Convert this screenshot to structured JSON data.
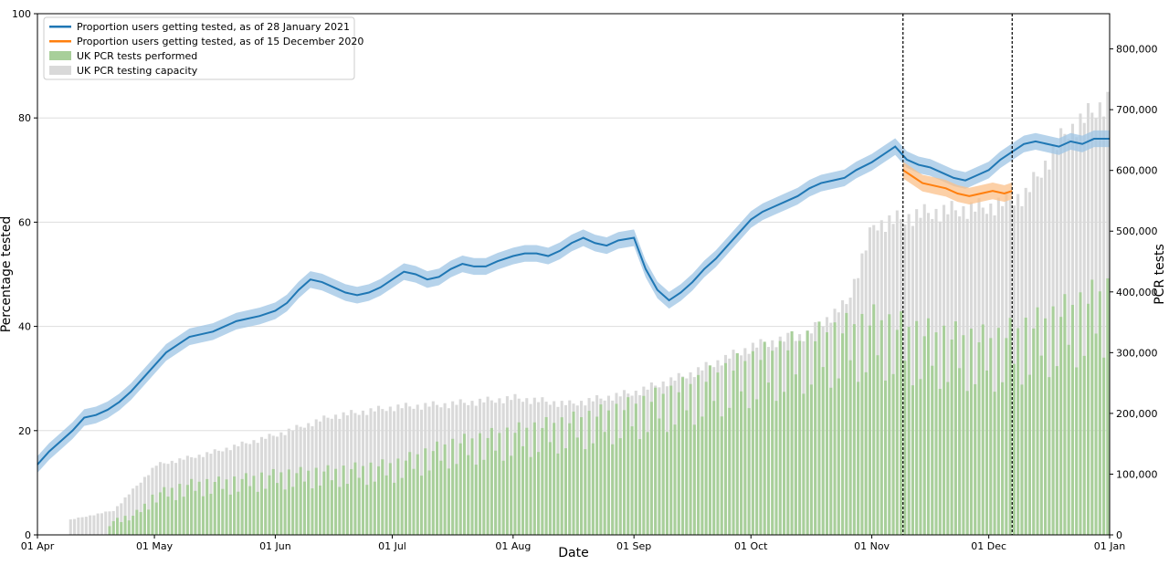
{
  "chart_data": {
    "type": "bar+line",
    "xlabel": "Date",
    "ylabel_left": "Percentage tested",
    "ylabel_right": "PCR tests",
    "x_range": [
      "2020-04-01",
      "2021-01-01"
    ],
    "ylim_left": [
      0,
      100
    ],
    "ylim_right": [
      0,
      858000
    ],
    "x_ticks": [
      {
        "date": "2020-04-01",
        "label": "01 Apr"
      },
      {
        "date": "2020-05-01",
        "label": "01 May"
      },
      {
        "date": "2020-06-01",
        "label": "01 Jun"
      },
      {
        "date": "2020-07-01",
        "label": "01 Jul"
      },
      {
        "date": "2020-08-01",
        "label": "01 Aug"
      },
      {
        "date": "2020-09-01",
        "label": "01 Sep"
      },
      {
        "date": "2020-10-01",
        "label": "01 Oct"
      },
      {
        "date": "2020-11-01",
        "label": "01 Nov"
      },
      {
        "date": "2020-12-01",
        "label": "01 Dec"
      },
      {
        "date": "2021-01-01",
        "label": "01 Jan"
      }
    ],
    "y_ticks_left": [
      {
        "value": 0,
        "label": "0"
      },
      {
        "value": 20,
        "label": "20"
      },
      {
        "value": 40,
        "label": "40"
      },
      {
        "value": 60,
        "label": "60"
      },
      {
        "value": 80,
        "label": "80"
      },
      {
        "value": 100,
        "label": "100"
      }
    ],
    "y_ticks_right": [
      {
        "value": 0,
        "label": "0"
      },
      {
        "value": 100000,
        "label": "100,000"
      },
      {
        "value": 200000,
        "label": "200,000"
      },
      {
        "value": 300000,
        "label": "300,000"
      },
      {
        "value": 400000,
        "label": "400,000"
      },
      {
        "value": 500000,
        "label": "500,000"
      },
      {
        "value": 600000,
        "label": "600,000"
      },
      {
        "value": 700000,
        "label": "700,000"
      },
      {
        "value": 800000,
        "label": "800,000"
      }
    ],
    "grid": "horizontal",
    "legend_position": "top-left",
    "vlines": [
      "2020-11-09",
      "2020-12-07"
    ],
    "series": [
      {
        "name": "Proportion users getting tested, as of 28 January 2021",
        "kind": "line",
        "axis": "left",
        "color": "#1f77b4",
        "band_color": "#9ec4e4",
        "points": [
          [
            "2020-04-01",
            13.5
          ],
          [
            "2020-04-04",
            16
          ],
          [
            "2020-04-07",
            18
          ],
          [
            "2020-04-10",
            20
          ],
          [
            "2020-04-13",
            22.5
          ],
          [
            "2020-04-16",
            23
          ],
          [
            "2020-04-19",
            24
          ],
          [
            "2020-04-22",
            25.5
          ],
          [
            "2020-04-25",
            27.5
          ],
          [
            "2020-04-28",
            30
          ],
          [
            "2020-05-01",
            32.5
          ],
          [
            "2020-05-04",
            35
          ],
          [
            "2020-05-07",
            36.5
          ],
          [
            "2020-05-10",
            38
          ],
          [
            "2020-05-13",
            38.5
          ],
          [
            "2020-05-16",
            39
          ],
          [
            "2020-05-19",
            40
          ],
          [
            "2020-05-22",
            41
          ],
          [
            "2020-05-25",
            41.5
          ],
          [
            "2020-05-28",
            42
          ],
          [
            "2020-06-01",
            43
          ],
          [
            "2020-06-04",
            44.5
          ],
          [
            "2020-06-07",
            47
          ],
          [
            "2020-06-10",
            49
          ],
          [
            "2020-06-13",
            48.5
          ],
          [
            "2020-06-16",
            47.5
          ],
          [
            "2020-06-19",
            46.5
          ],
          [
            "2020-06-22",
            46
          ],
          [
            "2020-06-25",
            46.5
          ],
          [
            "2020-06-28",
            47.5
          ],
          [
            "2020-07-01",
            49
          ],
          [
            "2020-07-04",
            50.5
          ],
          [
            "2020-07-07",
            50
          ],
          [
            "2020-07-10",
            49
          ],
          [
            "2020-07-13",
            49.5
          ],
          [
            "2020-07-16",
            51
          ],
          [
            "2020-07-19",
            52
          ],
          [
            "2020-07-22",
            51.5
          ],
          [
            "2020-07-25",
            51.5
          ],
          [
            "2020-07-28",
            52.5
          ],
          [
            "2020-08-01",
            53.5
          ],
          [
            "2020-08-04",
            54
          ],
          [
            "2020-08-07",
            54
          ],
          [
            "2020-08-10",
            53.5
          ],
          [
            "2020-08-13",
            54.5
          ],
          [
            "2020-08-16",
            56
          ],
          [
            "2020-08-19",
            57
          ],
          [
            "2020-08-22",
            56
          ],
          [
            "2020-08-25",
            55.5
          ],
          [
            "2020-08-28",
            56.5
          ],
          [
            "2020-09-01",
            57
          ],
          [
            "2020-09-04",
            51
          ],
          [
            "2020-09-07",
            47
          ],
          [
            "2020-09-10",
            45
          ],
          [
            "2020-09-13",
            46.5
          ],
          [
            "2020-09-16",
            48.5
          ],
          [
            "2020-09-19",
            51
          ],
          [
            "2020-09-22",
            53
          ],
          [
            "2020-09-25",
            55.5
          ],
          [
            "2020-09-28",
            58
          ],
          [
            "2020-10-01",
            60.5
          ],
          [
            "2020-10-04",
            62
          ],
          [
            "2020-10-07",
            63
          ],
          [
            "2020-10-10",
            64
          ],
          [
            "2020-10-13",
            65
          ],
          [
            "2020-10-16",
            66.5
          ],
          [
            "2020-10-19",
            67.5
          ],
          [
            "2020-10-22",
            68
          ],
          [
            "2020-10-25",
            68.5
          ],
          [
            "2020-10-28",
            70
          ],
          [
            "2020-11-01",
            71.5
          ],
          [
            "2020-11-04",
            73
          ],
          [
            "2020-11-07",
            74.5
          ],
          [
            "2020-11-10",
            72
          ],
          [
            "2020-11-13",
            71
          ],
          [
            "2020-11-16",
            70.5
          ],
          [
            "2020-11-19",
            69.5
          ],
          [
            "2020-11-22",
            68.5
          ],
          [
            "2020-11-25",
            68
          ],
          [
            "2020-11-28",
            69
          ],
          [
            "2020-12-01",
            70
          ],
          [
            "2020-12-04",
            72
          ],
          [
            "2020-12-07",
            73.5
          ],
          [
            "2020-12-10",
            75
          ],
          [
            "2020-12-13",
            75.5
          ],
          [
            "2020-12-16",
            75
          ],
          [
            "2020-12-19",
            74.5
          ],
          [
            "2020-12-22",
            75.5
          ],
          [
            "2020-12-25",
            75
          ],
          [
            "2020-12-28",
            76
          ],
          [
            "2021-01-01",
            76
          ]
        ]
      },
      {
        "name": "Proportion users getting tested, as of 15 December 2020",
        "kind": "line",
        "axis": "left",
        "color": "#ff7f0e",
        "band_color": "#fbc08a",
        "points": [
          [
            "2020-11-09",
            70
          ],
          [
            "2020-11-11",
            69
          ],
          [
            "2020-11-14",
            67.5
          ],
          [
            "2020-11-17",
            67
          ],
          [
            "2020-11-20",
            66.5
          ],
          [
            "2020-11-23",
            65.5
          ],
          [
            "2020-11-26",
            65
          ],
          [
            "2020-11-29",
            65.5
          ],
          [
            "2020-12-02",
            66
          ],
          [
            "2020-12-05",
            65.5
          ],
          [
            "2020-12-07",
            66
          ]
        ]
      },
      {
        "name": "UK PCR tests performed",
        "kind": "bar",
        "axis": "right",
        "color": "#a8cf9a",
        "anchors": [
          [
            "2020-04-18",
            0
          ],
          [
            "2020-04-20",
            25000
          ],
          [
            "2020-04-25",
            30000
          ],
          [
            "2020-05-01",
            65000
          ],
          [
            "2020-05-10",
            80000
          ],
          [
            "2020-05-20",
            85000
          ],
          [
            "2020-06-01",
            95000
          ],
          [
            "2020-06-15",
            100000
          ],
          [
            "2020-07-01",
            110000
          ],
          [
            "2020-07-15",
            140000
          ],
          [
            "2020-08-01",
            160000
          ],
          [
            "2020-08-15",
            175000
          ],
          [
            "2020-09-01",
            200000
          ],
          [
            "2020-09-15",
            230000
          ],
          [
            "2020-10-01",
            270000
          ],
          [
            "2020-10-15",
            300000
          ],
          [
            "2020-11-01",
            330000
          ],
          [
            "2020-11-15",
            310000
          ],
          [
            "2020-12-01",
            300000
          ],
          [
            "2020-12-15",
            330000
          ],
          [
            "2021-01-01",
            380000
          ]
        ]
      },
      {
        "name": "UK PCR testing capacity",
        "kind": "bar",
        "axis": "right",
        "color": "#d9d9d9",
        "anchors": [
          [
            "2020-04-09",
            25000
          ],
          [
            "2020-04-20",
            40000
          ],
          [
            "2020-05-01",
            115000
          ],
          [
            "2020-05-15",
            135000
          ],
          [
            "2020-06-01",
            165000
          ],
          [
            "2020-06-15",
            195000
          ],
          [
            "2020-07-01",
            210000
          ],
          [
            "2020-07-15",
            215000
          ],
          [
            "2020-08-01",
            225000
          ],
          [
            "2020-08-15",
            215000
          ],
          [
            "2020-09-01",
            235000
          ],
          [
            "2020-09-15",
            265000
          ],
          [
            "2020-10-01",
            310000
          ],
          [
            "2020-10-15",
            330000
          ],
          [
            "2020-10-25",
            380000
          ],
          [
            "2020-11-01",
            510000
          ],
          [
            "2020-11-15",
            530000
          ],
          [
            "2020-12-01",
            540000
          ],
          [
            "2020-12-10",
            560000
          ],
          [
            "2020-12-20",
            660000
          ],
          [
            "2021-01-01",
            720000
          ]
        ]
      }
    ]
  }
}
